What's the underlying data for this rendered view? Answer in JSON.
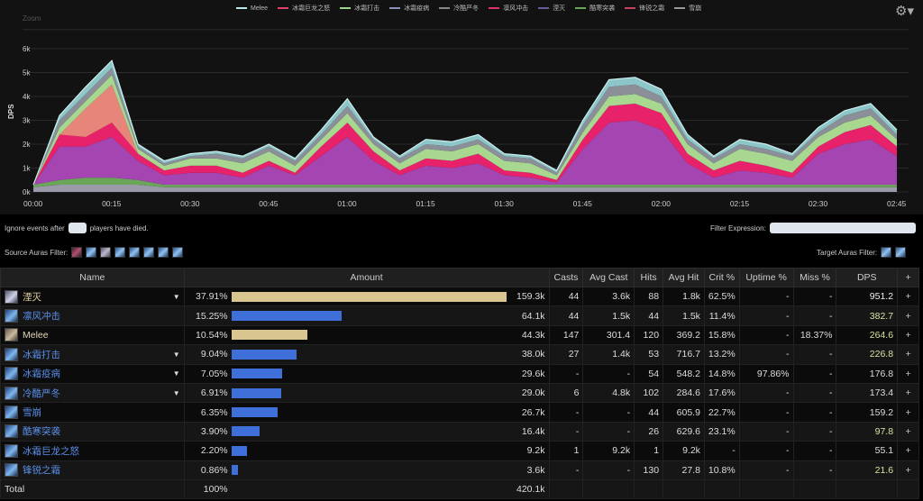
{
  "chart": {
    "zoom_label": "Zoom",
    "settings_icon": "gear-icon"
  },
  "chart_data": {
    "type": "area",
    "stacked": true,
    "ylabel": "DPS",
    "ylim": [
      0,
      6.8
    ],
    "yticks": [
      "0k",
      "1k",
      "2k",
      "3k",
      "4k",
      "5k",
      "6k"
    ],
    "xticks": [
      "00:00",
      "00:15",
      "00:30",
      "00:45",
      "01:00",
      "01:15",
      "01:30",
      "01:45",
      "02:00",
      "02:15",
      "02:30",
      "02:45"
    ],
    "x_seconds": [
      0,
      5,
      10,
      15,
      20,
      25,
      30,
      35,
      40,
      45,
      50,
      55,
      60,
      65,
      70,
      75,
      80,
      85,
      90,
      95,
      100,
      105,
      110,
      115,
      120,
      125,
      130,
      135,
      140,
      145,
      150,
      155,
      160,
      165
    ],
    "grid": true,
    "legend": "top",
    "legend_order": [
      "Melee",
      "冰霜巨龙之怒",
      "冰霜打击",
      "冰霜疫病",
      "冷酷严冬",
      "凛风冲击",
      "湮灭",
      "酷寒突袭",
      "锋锐之霜",
      "雪崩"
    ],
    "series": [
      {
        "name": "雪崩",
        "color": "#9a9aaa",
        "values": [
          0.2,
          0.3,
          0.3,
          0.3,
          0.3,
          0.2,
          0.2,
          0.2,
          0.2,
          0.2,
          0.2,
          0.2,
          0.2,
          0.2,
          0.2,
          0.2,
          0.2,
          0.2,
          0.2,
          0.2,
          0.2,
          0.2,
          0.2,
          0.2,
          0.2,
          0.2,
          0.2,
          0.2,
          0.2,
          0.2,
          0.2,
          0.2,
          0.2,
          0.2
        ]
      },
      {
        "name": "酷寒突袭",
        "color": "#6aa55a",
        "values": [
          0.1,
          0.2,
          0.3,
          0.3,
          0.2,
          0.1,
          0.1,
          0.1,
          0.1,
          0.1,
          0.1,
          0.1,
          0.1,
          0.1,
          0.1,
          0.1,
          0.1,
          0.1,
          0.1,
          0.1,
          0.1,
          0.1,
          0.1,
          0.1,
          0.1,
          0.1,
          0.1,
          0.1,
          0.1,
          0.1,
          0.1,
          0.1,
          0.1,
          0.1
        ]
      },
      {
        "name": "湮灭",
        "color": "#a445b2",
        "values": [
          0,
          1.4,
          1.3,
          1.7,
          0.8,
          0.4,
          0.5,
          0.5,
          0.3,
          0.8,
          0.4,
          1.2,
          2.0,
          1.0,
          0.4,
          0.8,
          0.7,
          0.9,
          0.4,
          0.3,
          0.1,
          1.5,
          2.6,
          2.7,
          2.3,
          0.9,
          0.3,
          0.6,
          0.5,
          0.3,
          1.3,
          1.7,
          1.9,
          1.2
        ]
      },
      {
        "name": "凛风冲击",
        "color": "#e8226a",
        "values": [
          0,
          0.5,
          0.4,
          0.6,
          0.3,
          0.2,
          0.3,
          0.3,
          0.2,
          0.2,
          0.1,
          0.4,
          0.6,
          0.4,
          0.2,
          0.3,
          0.3,
          0.4,
          0.2,
          0.2,
          0.1,
          0.4,
          0.7,
          0.7,
          0.7,
          0.4,
          0.3,
          0.4,
          0.3,
          0.2,
          0.3,
          0.5,
          0.6,
          0.4
        ]
      },
      {
        "name": "冰霜巨龙之怒",
        "color": "#e8857a",
        "values": [
          0,
          0,
          1.2,
          1.6,
          0,
          0,
          0,
          0,
          0,
          0,
          0,
          0,
          0,
          0,
          0,
          0,
          0,
          0,
          0,
          0,
          0,
          0,
          0,
          0,
          0,
          0,
          0,
          0,
          0,
          0,
          0,
          0,
          0,
          0
        ]
      },
      {
        "name": "冰霜打击",
        "color": "#a8d890",
        "values": [
          0,
          0.3,
          0.3,
          0.4,
          0.2,
          0.2,
          0.3,
          0.3,
          0.4,
          0.4,
          0.3,
          0.3,
          0.4,
          0.3,
          0.3,
          0.4,
          0.4,
          0.4,
          0.4,
          0.4,
          0.2,
          0.3,
          0.4,
          0.4,
          0.4,
          0.4,
          0.3,
          0.5,
          0.5,
          0.5,
          0.4,
          0.4,
          0.4,
          0.3
        ]
      },
      {
        "name": "冷酷严冬",
        "color": "#8a8f98",
        "values": [
          0,
          0.3,
          0.3,
          0.3,
          0.1,
          0.1,
          0.1,
          0.2,
          0.2,
          0.2,
          0.2,
          0.2,
          0.3,
          0.2,
          0.2,
          0.2,
          0.2,
          0.2,
          0.2,
          0.2,
          0.1,
          0.3,
          0.4,
          0.4,
          0.3,
          0.2,
          0.2,
          0.2,
          0.2,
          0.2,
          0.2,
          0.3,
          0.3,
          0.2
        ]
      },
      {
        "name": "Melee",
        "color": "#8cc6c8",
        "values": [
          0,
          0.2,
          0.3,
          0.3,
          0.1,
          0.1,
          0.1,
          0.1,
          0.1,
          0.1,
          0.1,
          0.2,
          0.3,
          0.1,
          0.1,
          0.2,
          0.2,
          0.2,
          0.1,
          0.1,
          0.1,
          0.2,
          0.3,
          0.3,
          0.3,
          0.2,
          0.1,
          0.2,
          0.2,
          0.1,
          0.2,
          0.2,
          0.2,
          0.2
        ]
      }
    ],
    "legend_colors": {
      "Melee": "#bfe6e6",
      "冰霜巨龙之怒": "#e0406a",
      "冰霜打击": "#9fd58a",
      "冰霜疫病": "#8b8fb8",
      "冷酷严冬": "#888",
      "凛风冲击": "#e0306a",
      "湮灭": "#6a5a9a",
      "酷寒突袭": "#6aa55a",
      "锋锐之霜": "#c84060",
      "雪崩": "#999"
    }
  },
  "controls": {
    "ignore_prefix": "Ignore events after",
    "ignore_value": "",
    "ignore_suffix": "players have died.",
    "filter_expression_label": "Filter Expression:",
    "filter_expression_value": "",
    "source_auras_label": "Source Auras Filter:",
    "target_auras_label": "Target Auras Filter:"
  },
  "table": {
    "headers": [
      "Name",
      "Amount",
      "Casts",
      "Avg Cast",
      "Hits",
      "Avg Hit",
      "Crit %",
      "Uptime %",
      "Miss %",
      "DPS",
      "+"
    ],
    "rows": [
      {
        "name": "湮灭",
        "pct": "37.91%",
        "fill": 37.91,
        "amount": "159.3k",
        "casts": "44",
        "avg_cast": "3.6k",
        "hits": "88",
        "avg_hit": "1.8k",
        "crit": "62.5%",
        "uptime": "-",
        "miss": "-",
        "dps": "951.2",
        "expand": true,
        "bar": "#d8c590",
        "namecolor": "#e0cfa0",
        "icon": "pale",
        "dpscolor": "#eee"
      },
      {
        "name": "凛风冲击",
        "pct": "15.25%",
        "fill": 15.25,
        "amount": "64.1k",
        "casts": "44",
        "avg_cast": "1.5k",
        "hits": "44",
        "avg_hit": "1.5k",
        "crit": "11.4%",
        "uptime": "-",
        "miss": "-",
        "dps": "382.7",
        "expand": false,
        "bar": "#3f6fd8",
        "namecolor": "#5a8ee8",
        "icon": "blue",
        "dpscolor": "#d6e3a0"
      },
      {
        "name": "Melee",
        "pct": "10.54%",
        "fill": 10.54,
        "amount": "44.3k",
        "casts": "147",
        "avg_cast": "301.4",
        "hits": "120",
        "avg_hit": "369.2",
        "crit": "15.8%",
        "uptime": "-",
        "miss": "18.37%",
        "dps": "264.6",
        "expand": false,
        "bar": "#d8c590",
        "namecolor": "#e0d6b8",
        "icon": "tan",
        "dpscolor": "#d6e3a0"
      },
      {
        "name": "冰霜打击",
        "pct": "9.04%",
        "fill": 9.04,
        "amount": "38.0k",
        "casts": "27",
        "avg_cast": "1.4k",
        "hits": "53",
        "avg_hit": "716.7",
        "crit": "13.2%",
        "uptime": "-",
        "miss": "-",
        "dps": "226.8",
        "expand": true,
        "bar": "#3f6fd8",
        "namecolor": "#5a8ee8",
        "icon": "blue",
        "dpscolor": "#d6e3a0"
      },
      {
        "name": "冰霜疫病",
        "pct": "7.05%",
        "fill": 7.05,
        "amount": "29.6k",
        "casts": "-",
        "avg_cast": "-",
        "hits": "54",
        "avg_hit": "548.2",
        "crit": "14.8%",
        "uptime": "97.86%",
        "miss": "-",
        "dps": "176.8",
        "expand": true,
        "bar": "#3f6fd8",
        "namecolor": "#5a8ee8",
        "icon": "blue",
        "dpscolor": "#ddd"
      },
      {
        "name": "冷酷严冬",
        "pct": "6.91%",
        "fill": 6.91,
        "amount": "29.0k",
        "casts": "6",
        "avg_cast": "4.8k",
        "hits": "102",
        "avg_hit": "284.6",
        "crit": "17.6%",
        "uptime": "-",
        "miss": "-",
        "dps": "173.4",
        "expand": true,
        "bar": "#3f6fd8",
        "namecolor": "#5a8ee8",
        "icon": "blue",
        "dpscolor": "#ddd"
      },
      {
        "name": "雪崩",
        "pct": "6.35%",
        "fill": 6.35,
        "amount": "26.7k",
        "casts": "-",
        "avg_cast": "-",
        "hits": "44",
        "avg_hit": "605.9",
        "crit": "22.7%",
        "uptime": "-",
        "miss": "-",
        "dps": "159.2",
        "expand": false,
        "bar": "#3f6fd8",
        "namecolor": "#5a8ee8",
        "icon": "blue",
        "dpscolor": "#ddd"
      },
      {
        "name": "酷寒突袭",
        "pct": "3.90%",
        "fill": 3.9,
        "amount": "16.4k",
        "casts": "-",
        "avg_cast": "-",
        "hits": "26",
        "avg_hit": "629.6",
        "crit": "23.1%",
        "uptime": "-",
        "miss": "-",
        "dps": "97.8",
        "expand": false,
        "bar": "#3f6fd8",
        "namecolor": "#5a8ee8",
        "icon": "blue",
        "dpscolor": "#d6e3a0"
      },
      {
        "name": "冰霜巨龙之怒",
        "pct": "2.20%",
        "fill": 2.2,
        "amount": "9.2k",
        "casts": "1",
        "avg_cast": "9.2k",
        "hits": "1",
        "avg_hit": "9.2k",
        "crit": "-",
        "uptime": "-",
        "miss": "-",
        "dps": "55.1",
        "expand": false,
        "bar": "#3f6fd8",
        "namecolor": "#5a8ee8",
        "icon": "blue",
        "dpscolor": "#ddd"
      },
      {
        "name": "锋锐之霜",
        "pct": "0.86%",
        "fill": 0.86,
        "amount": "3.6k",
        "casts": "-",
        "avg_cast": "-",
        "hits": "130",
        "avg_hit": "27.8",
        "crit": "10.8%",
        "uptime": "-",
        "miss": "-",
        "dps": "21.6",
        "expand": false,
        "bar": "#3f6fd8",
        "namecolor": "#5a8ee8",
        "icon": "blue",
        "dpscolor": "#d6e3a0"
      }
    ],
    "total": {
      "name": "Total",
      "pct": "100%",
      "amount": "420.1k"
    }
  }
}
